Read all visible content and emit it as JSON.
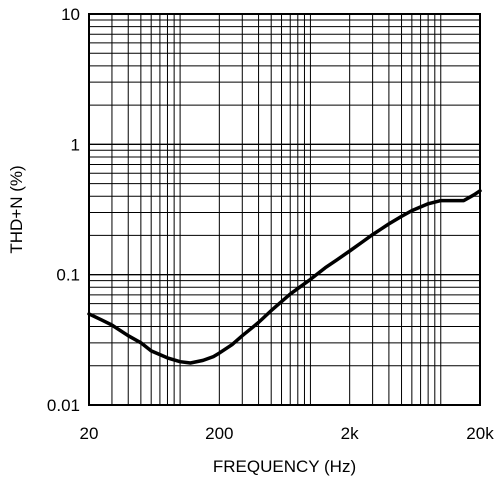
{
  "chart_data": {
    "type": "line",
    "title": "",
    "xlabel": "FREQUENCY (Hz)",
    "ylabel": "THD+N (%)",
    "x_scale": "log",
    "y_scale": "log",
    "xlim": [
      20,
      20000
    ],
    "ylim": [
      0.01,
      10
    ],
    "grid": true,
    "x_ticks": [
      {
        "value": 20,
        "label": "20"
      },
      {
        "value": 200,
        "label": "200"
      },
      {
        "value": 2000,
        "label": "2k"
      },
      {
        "value": 20000,
        "label": "20k"
      }
    ],
    "y_ticks": [
      {
        "value": 10,
        "label": "10"
      },
      {
        "value": 1,
        "label": "1"
      },
      {
        "value": 0.1,
        "label": "0.1"
      },
      {
        "value": 0.01,
        "label": "0.01"
      }
    ],
    "series": [
      {
        "color": "#000000",
        "x": [
          20,
          25,
          30,
          40,
          50,
          60,
          80,
          100,
          120,
          150,
          180,
          200,
          250,
          300,
          400,
          500,
          700,
          1000,
          1300,
          1600,
          2000,
          2500,
          3000,
          4000,
          5000,
          6000,
          8000,
          10000,
          12000,
          15000,
          18000,
          20000
        ],
        "y": [
          0.05,
          0.045,
          0.041,
          0.034,
          0.03,
          0.026,
          0.023,
          0.0215,
          0.021,
          0.022,
          0.0235,
          0.025,
          0.029,
          0.034,
          0.043,
          0.053,
          0.071,
          0.092,
          0.113,
          0.13,
          0.152,
          0.178,
          0.203,
          0.245,
          0.28,
          0.31,
          0.35,
          0.37,
          0.37,
          0.37,
          0.41,
          0.44
        ]
      }
    ]
  }
}
